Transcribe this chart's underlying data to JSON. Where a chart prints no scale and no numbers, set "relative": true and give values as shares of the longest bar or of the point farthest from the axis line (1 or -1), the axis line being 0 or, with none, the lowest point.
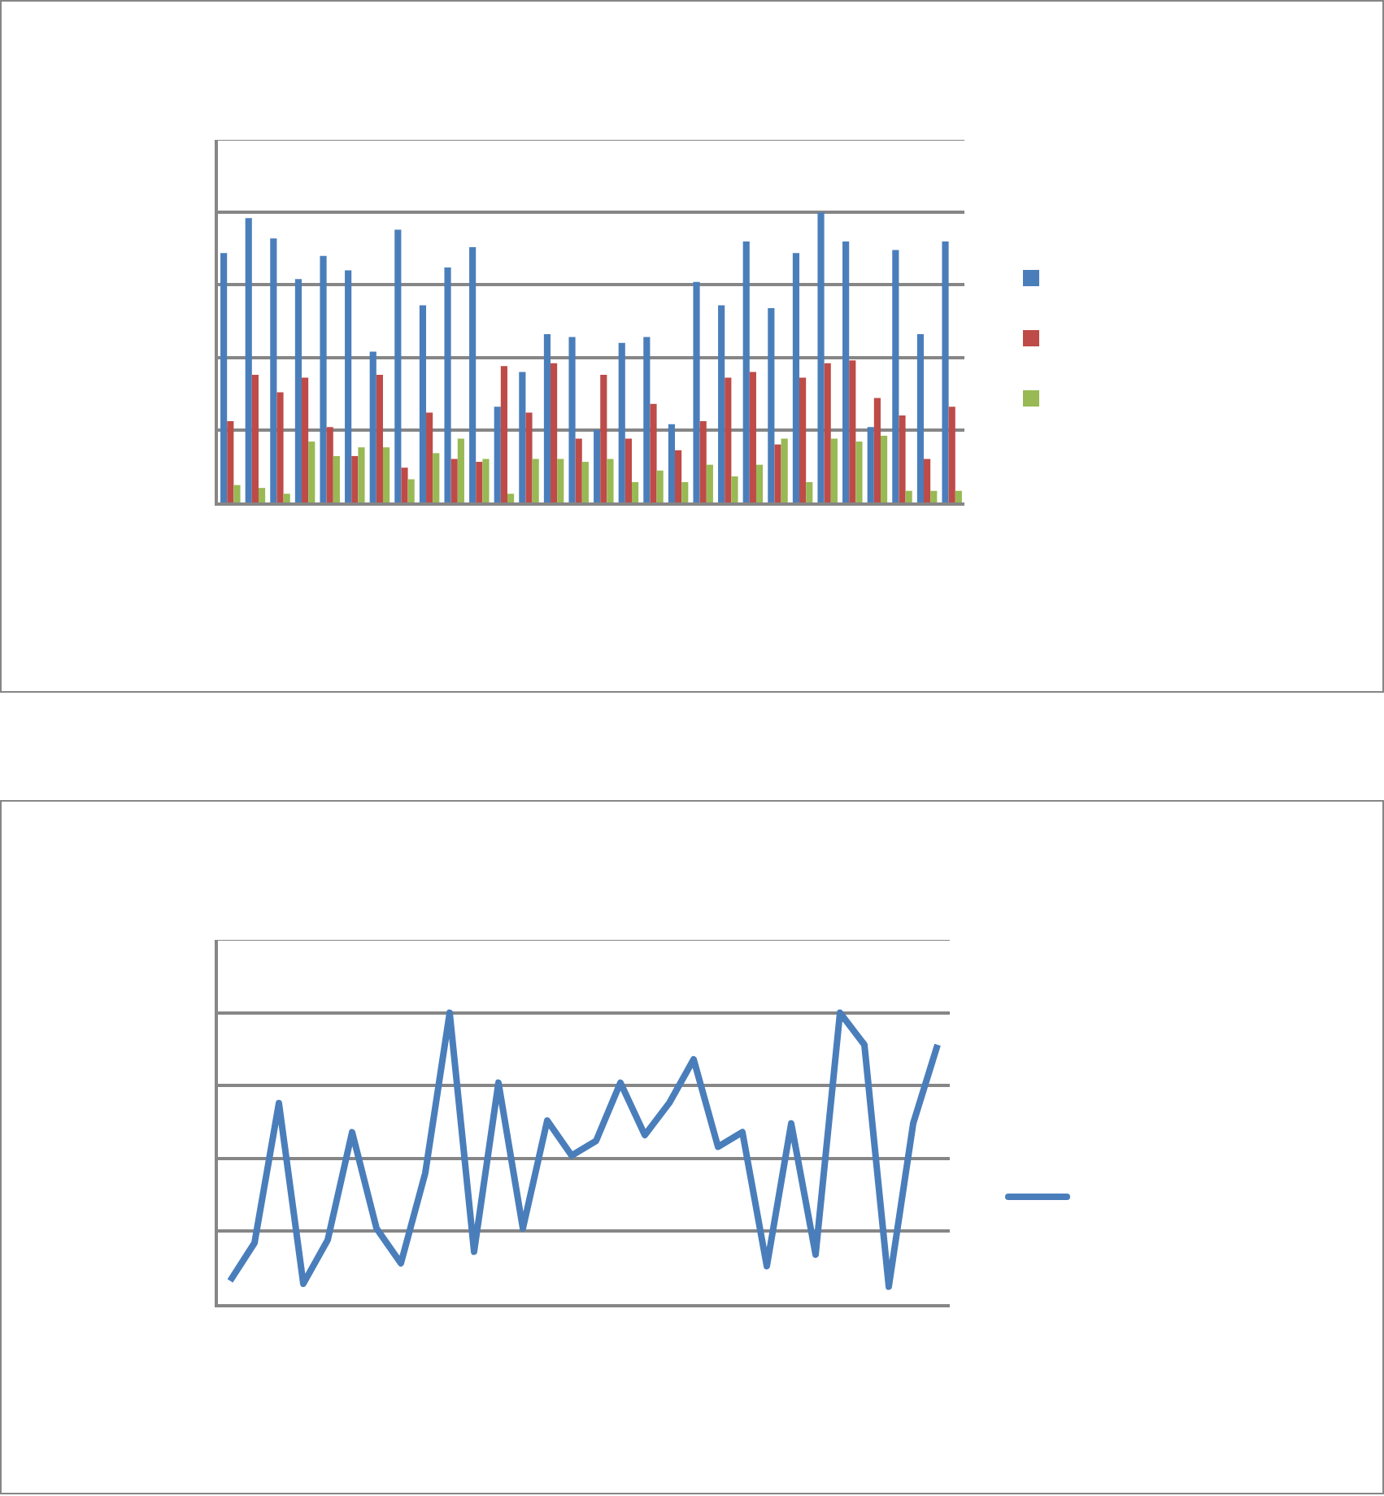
{
  "chart_data": [
    {
      "type": "bar",
      "relative": true,
      "grid": "y",
      "categories": [
        null,
        null,
        null,
        null,
        null,
        null,
        null,
        null,
        null,
        null,
        null,
        null,
        null,
        null,
        null,
        null,
        null,
        null,
        null,
        null,
        null,
        null,
        null,
        null,
        null,
        null,
        null,
        null,
        null,
        null
      ],
      "series": [
        {
          "color": "#4a7ebb",
          "values": [
            0.86,
            0.98,
            0.91,
            0.77,
            0.85,
            0.8,
            0.52,
            0.94,
            0.68,
            0.81,
            0.88,
            0.33,
            0.45,
            0.58,
            0.57,
            0.25,
            0.55,
            0.57,
            0.27,
            0.76,
            0.68,
            0.9,
            0.67,
            0.86,
            1,
            0.9,
            0.26,
            0.87,
            0.58,
            0.9
          ]
        },
        {
          "color": "#be4b48",
          "values": [
            0.28,
            0.44,
            0.38,
            0.43,
            0.26,
            0.16,
            0.44,
            0.12,
            0.31,
            0.15,
            0.14,
            0.47,
            0.31,
            0.48,
            0.22,
            0.44,
            0.22,
            0.34,
            0.18,
            0.28,
            0.43,
            0.45,
            0.2,
            0.43,
            0.48,
            0.49,
            0.36,
            0.3,
            0.15,
            0.33
          ]
        },
        {
          "color": "#98b954",
          "values": [
            0.06,
            0.05,
            0.03,
            0.21,
            0.16,
            0.19,
            0.19,
            0.08,
            0.17,
            0.22,
            0.15,
            0.03,
            0.15,
            0.15,
            0.14,
            0.15,
            0.07,
            0.11,
            0.07,
            0.13,
            0.09,
            0.13,
            0.22,
            0.07,
            0.22,
            0.21,
            0.23,
            0.04,
            0.04,
            0.04
          ]
        }
      ]
    },
    {
      "type": "line",
      "relative": true,
      "grid": "y",
      "marker": "none",
      "line_style": "solid",
      "categories": [
        null,
        null,
        null,
        null,
        null,
        null,
        null,
        null,
        null,
        null,
        null,
        null,
        null,
        null,
        null,
        null,
        null,
        null,
        null,
        null,
        null,
        null,
        null,
        null,
        null,
        null,
        null,
        null,
        null,
        null
      ],
      "series": [
        {
          "color": "#4a7ebb",
          "values": [
            0.08,
            0.21,
            0.69,
            0.07,
            0.22,
            0.59,
            0.26,
            0.14,
            0.45,
            1,
            0.18,
            0.76,
            0.26,
            0.63,
            0.51,
            0.56,
            0.76,
            0.58,
            0.69,
            0.84,
            0.54,
            0.59,
            0.13,
            0.62,
            0.17,
            1,
            0.89,
            0.06,
            0.62,
            0.89
          ]
        }
      ]
    }
  ]
}
